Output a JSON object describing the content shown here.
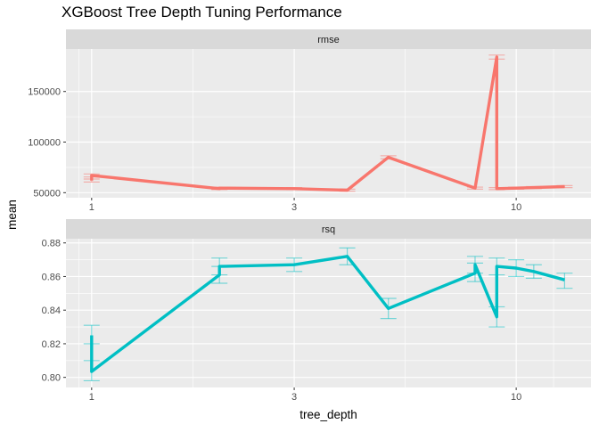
{
  "chart_data": {
    "title": "XGBoost Tree Depth Tuning Performance",
    "type": "line",
    "xlabel": "tree_depth",
    "ylabel": "mean",
    "x_scale": "log10",
    "xlim": [
      0.87,
      15.0
    ],
    "x_ticks": [
      1,
      3,
      10
    ],
    "x_tick_labels": [
      "1",
      "3",
      "10"
    ],
    "grid": true,
    "legend": "none",
    "panels": [
      {
        "strip": "rmse",
        "color": "#F8766D",
        "ylim": [
          45000,
          192000
        ],
        "y_ticks": [
          50000,
          100000,
          150000
        ],
        "y_tick_labels": [
          "50000",
          "100000",
          "150000"
        ],
        "points": [
          {
            "x": 1,
            "mean": 62000,
            "lo": 60500,
            "hi": 63500
          },
          {
            "x": 1,
            "mean": 67000,
            "lo": 65500,
            "hi": 68500
          },
          {
            "x": 2,
            "mean": 54000,
            "lo": 53000,
            "hi": 55000
          },
          {
            "x": 2,
            "mean": 54500,
            "lo": 53500,
            "hi": 55500
          },
          {
            "x": 3,
            "mean": 54000,
            "lo": 53000,
            "hi": 55000
          },
          {
            "x": 4,
            "mean": 52500,
            "lo": 51500,
            "hi": 53500
          },
          {
            "x": 5,
            "mean": 85000,
            "lo": 83500,
            "hi": 86500
          },
          {
            "x": 8,
            "mean": 54500,
            "lo": 53500,
            "hi": 55500
          },
          {
            "x": 9,
            "mean": 184000,
            "lo": 182000,
            "hi": 186000
          },
          {
            "x": 9,
            "mean": 54000,
            "lo": 53000,
            "hi": 55000
          },
          {
            "x": 10,
            "mean": 54500,
            "lo": 53500,
            "hi": 55500
          },
          {
            "x": 11,
            "mean": 55000,
            "lo": 54000,
            "hi": 56000
          },
          {
            "x": 13,
            "mean": 56000,
            "lo": 55000,
            "hi": 57000
          }
        ]
      },
      {
        "strip": "rsq",
        "color": "#00BFC4",
        "ylim": [
          0.794,
          0.8825
        ],
        "y_ticks": [
          0.8,
          0.82,
          0.84,
          0.86,
          0.88
        ],
        "y_tick_labels": [
          "0.80",
          "0.82",
          "0.84",
          "0.86",
          "0.88"
        ],
        "points": [
          {
            "x": 1,
            "mean": 0.825,
            "lo": 0.82,
            "hi": 0.831
          },
          {
            "x": 1,
            "mean": 0.8035,
            "lo": 0.798,
            "hi": 0.81
          },
          {
            "x": 2,
            "mean": 0.861,
            "lo": 0.856,
            "hi": 0.866
          },
          {
            "x": 2,
            "mean": 0.866,
            "lo": 0.861,
            "hi": 0.871
          },
          {
            "x": 3,
            "mean": 0.867,
            "lo": 0.863,
            "hi": 0.871
          },
          {
            "x": 4,
            "mean": 0.872,
            "lo": 0.867,
            "hi": 0.877
          },
          {
            "x": 5,
            "mean": 0.841,
            "lo": 0.835,
            "hi": 0.847
          },
          {
            "x": 8,
            "mean": 0.862,
            "lo": 0.857,
            "hi": 0.868
          },
          {
            "x": 8,
            "mean": 0.867,
            "lo": 0.862,
            "hi": 0.872
          },
          {
            "x": 9,
            "mean": 0.836,
            "lo": 0.83,
            "hi": 0.842
          },
          {
            "x": 9,
            "mean": 0.866,
            "lo": 0.861,
            "hi": 0.871
          },
          {
            "x": 10,
            "mean": 0.865,
            "lo": 0.86,
            "hi": 0.87
          },
          {
            "x": 11,
            "mean": 0.863,
            "lo": 0.859,
            "hi": 0.867
          },
          {
            "x": 13,
            "mean": 0.858,
            "lo": 0.853,
            "hi": 0.862
          }
        ]
      }
    ]
  }
}
